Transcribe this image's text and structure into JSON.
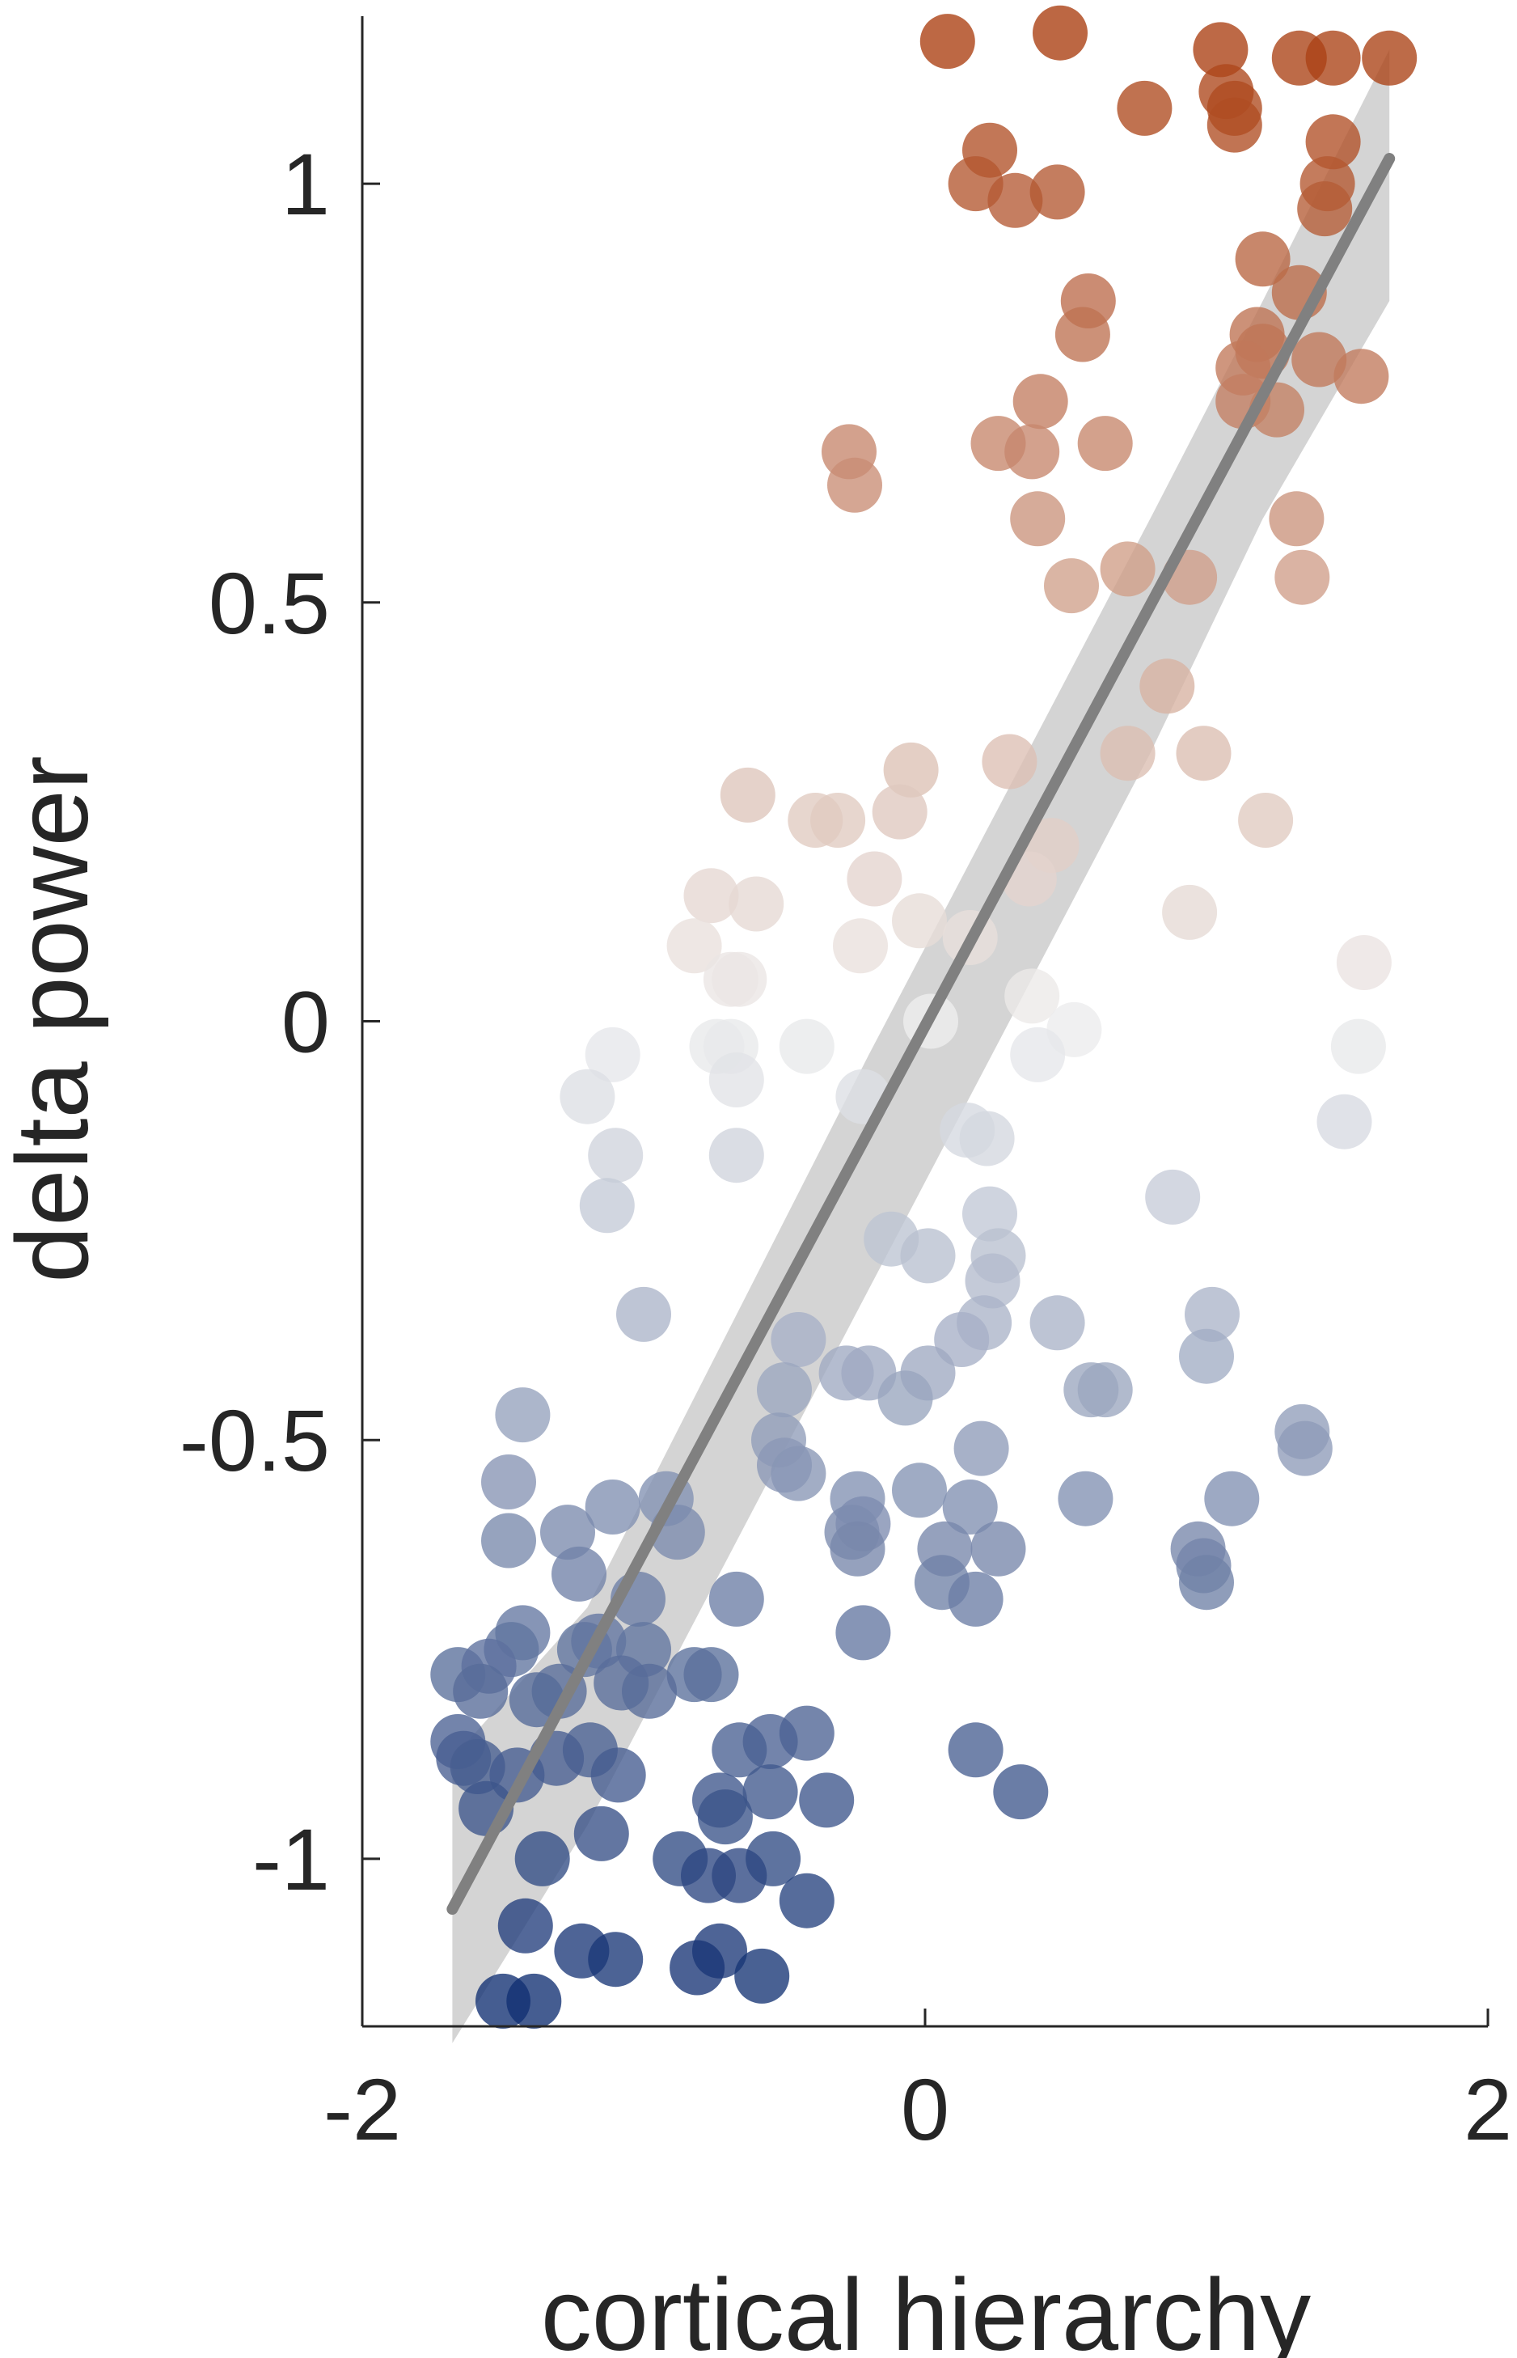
{
  "chart_data": {
    "type": "scatter",
    "title": "",
    "xlabel": "cortical hierarchy",
    "ylabel": "delta power",
    "xlim": [
      -2,
      2
    ],
    "ylim": [
      -1.2,
      1.2
    ],
    "xticks": [
      -2,
      0,
      2
    ],
    "yticks": [
      -1,
      -0.5,
      0,
      0.5,
      1
    ],
    "xtick_labels": [
      "-2",
      "0",
      "2"
    ],
    "ytick_labels": [
      "-1",
      "-0.5",
      "0",
      "0.5",
      "1"
    ],
    "grid": false,
    "colormap": {
      "low": "#0b2a6f",
      "mid": "#eeeeee",
      "high": "#a8390a",
      "range": [
        -1.2,
        1.2
      ]
    },
    "fit": {
      "color": "#808080",
      "ci_color": "#cccccc",
      "x": [
        -1.68,
        1.65
      ],
      "y": [
        -1.06,
        1.03
      ],
      "ci_x": [
        -1.68,
        -1.2,
        -0.7,
        -0.2,
        0.3,
        0.8,
        1.2,
        1.65
      ],
      "ci_upper": [
        -0.88,
        -0.7,
        -0.37,
        -0.04,
        0.28,
        0.6,
        0.86,
        1.16
      ],
      "ci_lower": [
        -1.22,
        -0.96,
        -0.64,
        -0.32,
        0.0,
        0.32,
        0.6,
        0.86
      ]
    },
    "points": [
      [
        0.08,
        1.17
      ],
      [
        0.48,
        1.18
      ],
      [
        1.05,
        1.16
      ],
      [
        1.33,
        1.15
      ],
      [
        1.45,
        1.15
      ],
      [
        1.65,
        1.15
      ],
      [
        1.07,
        1.11
      ],
      [
        1.1,
        1.09
      ],
      [
        0.78,
        1.09
      ],
      [
        1.1,
        1.07
      ],
      [
        1.45,
        1.05
      ],
      [
        0.23,
        1.04
      ],
      [
        0.18,
        1.0
      ],
      [
        0.32,
        0.98
      ],
      [
        0.47,
        0.99
      ],
      [
        1.43,
        1.0
      ],
      [
        1.42,
        0.97
      ],
      [
        1.2,
        0.91
      ],
      [
        1.33,
        0.87
      ],
      [
        0.58,
        0.86
      ],
      [
        0.56,
        0.82
      ],
      [
        1.18,
        0.82
      ],
      [
        1.2,
        0.8
      ],
      [
        1.13,
        0.78
      ],
      [
        1.4,
        0.79
      ],
      [
        1.55,
        0.77
      ],
      [
        0.41,
        0.74
      ],
      [
        1.13,
        0.74
      ],
      [
        1.25,
        0.73
      ],
      [
        -0.27,
        0.68
      ],
      [
        0.26,
        0.69
      ],
      [
        0.38,
        0.68
      ],
      [
        0.64,
        0.69
      ],
      [
        -0.25,
        0.64
      ],
      [
        0.4,
        0.6
      ],
      [
        1.32,
        0.6
      ],
      [
        0.52,
        0.52
      ],
      [
        0.72,
        0.54
      ],
      [
        0.94,
        0.53
      ],
      [
        1.34,
        0.53
      ],
      [
        0.86,
        0.4
      ],
      [
        0.3,
        0.31
      ],
      [
        0.72,
        0.32
      ],
      [
        0.99,
        0.32
      ],
      [
        -0.63,
        0.27
      ],
      [
        -0.05,
        0.3
      ],
      [
        -0.39,
        0.24
      ],
      [
        -0.31,
        0.24
      ],
      [
        -0.09,
        0.25
      ],
      [
        1.21,
        0.24
      ],
      [
        0.45,
        0.21
      ],
      [
        -0.18,
        0.17
      ],
      [
        0.37,
        0.17
      ],
      [
        -0.76,
        0.15
      ],
      [
        -0.6,
        0.14
      ],
      [
        -0.02,
        0.12
      ],
      [
        0.94,
        0.13
      ],
      [
        -0.82,
        0.09
      ],
      [
        -0.23,
        0.09
      ],
      [
        0.16,
        0.1
      ],
      [
        -0.69,
        0.05
      ],
      [
        -0.66,
        0.05
      ],
      [
        1.56,
        0.07
      ],
      [
        0.38,
        0.03
      ],
      [
        0.53,
        -0.01
      ],
      [
        0.02,
        0.0
      ],
      [
        -0.74,
        -0.03
      ],
      [
        -0.69,
        -0.03
      ],
      [
        -0.42,
        -0.03
      ],
      [
        1.54,
        -0.03
      ],
      [
        -1.11,
        -0.04
      ],
      [
        0.4,
        -0.04
      ],
      [
        -0.67,
        -0.07
      ],
      [
        -1.2,
        -0.09
      ],
      [
        -0.22,
        -0.09
      ],
      [
        0.15,
        -0.13
      ],
      [
        0.22,
        -0.14
      ],
      [
        1.49,
        -0.12
      ],
      [
        -1.1,
        -0.16
      ],
      [
        -0.67,
        -0.16
      ],
      [
        -1.13,
        -0.22
      ],
      [
        0.88,
        -0.21
      ],
      [
        0.23,
        -0.23
      ],
      [
        -0.12,
        -0.26
      ],
      [
        0.01,
        -0.28
      ],
      [
        0.26,
        -0.28
      ],
      [
        0.24,
        -0.31
      ],
      [
        -1.0,
        -0.35
      ],
      [
        0.47,
        -0.36
      ],
      [
        1.02,
        -0.35
      ],
      [
        0.21,
        -0.36
      ],
      [
        0.13,
        -0.38
      ],
      [
        -0.45,
        -0.38
      ],
      [
        1.0,
        -0.4
      ],
      [
        -0.28,
        -0.42
      ],
      [
        -0.2,
        -0.42
      ],
      [
        0.01,
        -0.42
      ],
      [
        -0.5,
        -0.44
      ],
      [
        -0.07,
        -0.45
      ],
      [
        0.59,
        -0.44
      ],
      [
        0.64,
        -0.44
      ],
      [
        -1.43,
        -0.47
      ],
      [
        -0.52,
        -0.5
      ],
      [
        1.34,
        -0.49
      ],
      [
        0.2,
        -0.51
      ],
      [
        1.35,
        -0.51
      ],
      [
        -0.5,
        -0.53
      ],
      [
        -0.45,
        -0.54
      ],
      [
        -1.48,
        -0.55
      ],
      [
        -0.02,
        -0.56
      ],
      [
        -0.92,
        -0.57
      ],
      [
        -0.24,
        -0.57
      ],
      [
        0.57,
        -0.57
      ],
      [
        -1.11,
        -0.58
      ],
      [
        0.16,
        -0.58
      ],
      [
        1.09,
        -0.57
      ],
      [
        -0.88,
        -0.61
      ],
      [
        -0.26,
        -0.61
      ],
      [
        -0.22,
        -0.6
      ],
      [
        -1.27,
        -0.61
      ],
      [
        -0.24,
        -0.63
      ],
      [
        -1.48,
        -0.62
      ],
      [
        0.07,
        -0.63
      ],
      [
        0.26,
        -0.63
      ],
      [
        0.97,
        -0.63
      ],
      [
        0.99,
        -0.65
      ],
      [
        -1.23,
        -0.66
      ],
      [
        0.06,
        -0.67
      ],
      [
        1.0,
        -0.67
      ],
      [
        -1.02,
        -0.69
      ],
      [
        -0.67,
        -0.69
      ],
      [
        0.18,
        -0.69
      ],
      [
        -1.43,
        -0.73
      ],
      [
        -0.22,
        -0.73
      ],
      [
        -1.16,
        -0.74
      ],
      [
        -1.21,
        -0.75
      ],
      [
        -1.47,
        -0.75
      ],
      [
        -1.0,
        -0.75
      ],
      [
        -1.66,
        -0.78
      ],
      [
        -1.55,
        -0.77
      ],
      [
        -0.82,
        -0.78
      ],
      [
        -1.58,
        -0.8
      ],
      [
        -1.3,
        -0.8
      ],
      [
        -1.08,
        -0.79
      ],
      [
        -0.76,
        -0.78
      ],
      [
        -0.98,
        -0.8
      ],
      [
        -1.38,
        -0.81
      ],
      [
        -0.42,
        -0.85
      ],
      [
        -0.55,
        -0.86
      ],
      [
        -1.66,
        -0.86
      ],
      [
        -0.66,
        -0.87
      ],
      [
        0.18,
        -0.87
      ],
      [
        -1.64,
        -0.88
      ],
      [
        -1.19,
        -0.87
      ],
      [
        -1.31,
        -0.88
      ],
      [
        -1.59,
        -0.89
      ],
      [
        -1.09,
        -0.9
      ],
      [
        -1.45,
        -0.9
      ],
      [
        -0.73,
        -0.93
      ],
      [
        -0.55,
        -0.92
      ],
      [
        -0.35,
        -0.93
      ],
      [
        0.34,
        -0.92
      ],
      [
        -1.56,
        -0.94
      ],
      [
        -0.71,
        -0.95
      ],
      [
        -1.15,
        -0.97
      ],
      [
        -0.87,
        -1.0
      ],
      [
        -1.36,
        -1.0
      ],
      [
        -0.54,
        -1.0
      ],
      [
        -0.77,
        -1.02
      ],
      [
        -0.66,
        -1.02
      ],
      [
        -0.42,
        -1.05
      ],
      [
        -1.42,
        -1.08
      ],
      [
        -0.73,
        -1.11
      ],
      [
        -1.22,
        -1.11
      ],
      [
        -1.1,
        -1.12
      ],
      [
        -0.81,
        -1.13
      ],
      [
        -0.58,
        -1.14
      ],
      [
        -1.5,
        -1.17
      ],
      [
        -1.39,
        -1.17
      ]
    ]
  }
}
